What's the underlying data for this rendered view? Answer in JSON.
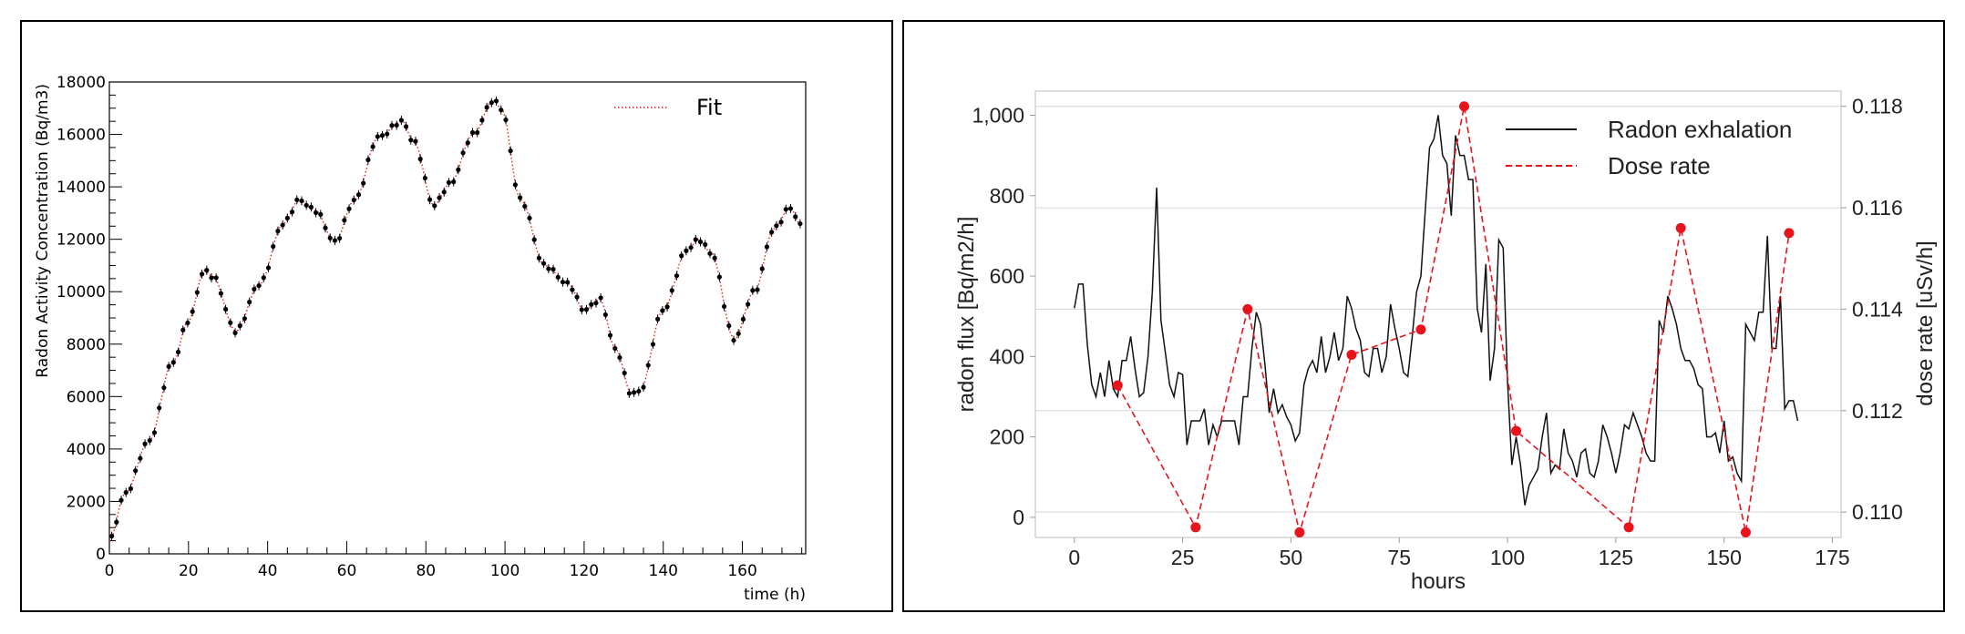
{
  "chart_data": [
    {
      "type": "scatter",
      "title": "",
      "xlabel": "time (h)",
      "ylabel": "Radon Activity Concentration (Bq/m3)",
      "xlim": [
        0,
        176
      ],
      "ylim": [
        0,
        18000
      ],
      "x_ticks": [
        "0",
        "20",
        "40",
        "60",
        "80",
        "100",
        "120",
        "140",
        "160"
      ],
      "x_tick_values": [
        0,
        20,
        40,
        60,
        80,
        100,
        120,
        140,
        160
      ],
      "y_ticks": [
        "0",
        "2000",
        "4000",
        "6000",
        "8000",
        "10000",
        "12000",
        "14000",
        "16000",
        "18000"
      ],
      "y_tick_values": [
        0,
        2000,
        4000,
        6000,
        8000,
        10000,
        12000,
        14000,
        16000,
        18000
      ],
      "legend": [
        {
          "name": "Fit",
          "style": "red dotted line"
        }
      ],
      "legend_position": "top-right",
      "colors": {
        "data": "#000000",
        "fit": "#e0201b"
      },
      "keypoints": [
        [
          0,
          500
        ],
        [
          4,
          2300
        ],
        [
          10,
          4300
        ],
        [
          16,
          7300
        ],
        [
          20,
          8900
        ],
        [
          24,
          10800
        ],
        [
          26,
          10600
        ],
        [
          32,
          8500
        ],
        [
          38,
          10300
        ],
        [
          44,
          12600
        ],
        [
          48,
          13500
        ],
        [
          52,
          13100
        ],
        [
          57,
          11900
        ],
        [
          62,
          13500
        ],
        [
          68,
          15900
        ],
        [
          74,
          16500
        ],
        [
          77,
          15700
        ],
        [
          82,
          13300
        ],
        [
          86,
          14100
        ],
        [
          92,
          16000
        ],
        [
          97,
          17300
        ],
        [
          99,
          17000
        ],
        [
          104,
          13500
        ],
        [
          110,
          11000
        ],
        [
          116,
          10300
        ],
        [
          120,
          9300
        ],
        [
          124,
          9700
        ],
        [
          128,
          7800
        ],
        [
          132,
          6100
        ],
        [
          134,
          6200
        ],
        [
          140,
          9300
        ],
        [
          146,
          11600
        ],
        [
          149,
          12000
        ],
        [
          152,
          11500
        ],
        [
          158,
          8200
        ],
        [
          163,
          10000
        ],
        [
          168,
          12400
        ],
        [
          172,
          13200
        ],
        [
          175,
          12500
        ]
      ],
      "sample_step": 1.2
    },
    {
      "type": "line",
      "title": "",
      "xlabel": "hours",
      "ylabel": "radon flux [Bq/m2/h]",
      "y2label": "dose rate [uSv/h]",
      "xlim": [
        -9,
        177
      ],
      "ylim": [
        -50,
        1060
      ],
      "y2lim": [
        0.1095,
        0.1183
      ],
      "x_ticks": [
        "0",
        "25",
        "50",
        "75",
        "100",
        "125",
        "150",
        "175"
      ],
      "x_tick_values": [
        0,
        25,
        50,
        75,
        100,
        125,
        150,
        175
      ],
      "y_ticks": [
        "0",
        "200",
        "400",
        "600",
        "800",
        "1,000"
      ],
      "y_tick_values": [
        0,
        200,
        400,
        600,
        800,
        1000
      ],
      "y2_ticks": [
        "0.110",
        "0.112",
        "0.114",
        "0.116",
        "0.118"
      ],
      "y2_tick_values": [
        0.11,
        0.112,
        0.114,
        0.116,
        0.118
      ],
      "legend_position": "top-right",
      "colors": {
        "radon": "#111111",
        "dose": "#e8141b"
      },
      "series": [
        {
          "name": "Radon exhalation",
          "axis": "left",
          "style": "solid",
          "x": [
            0,
            1,
            2,
            3,
            4,
            5,
            6,
            7,
            8,
            9,
            10,
            11,
            12,
            13,
            14,
            15,
            16,
            17,
            18,
            19,
            20,
            21,
            22,
            23,
            24,
            25,
            26,
            27,
            28,
            29,
            30,
            31,
            32,
            33,
            34,
            35,
            36,
            37,
            38,
            39,
            40,
            41,
            42,
            43,
            44,
            45,
            46,
            47,
            48,
            49,
            50,
            51,
            52,
            53,
            54,
            55,
            56,
            57,
            58,
            59,
            60,
            61,
            62,
            63,
            64,
            65,
            66,
            67,
            68,
            69,
            70,
            71,
            72,
            73,
            74,
            75,
            76,
            77,
            78,
            79,
            80,
            81,
            82,
            83,
            84,
            85,
            86,
            87,
            88,
            89,
            90,
            91,
            92,
            93,
            94,
            95,
            96,
            97,
            98,
            99,
            100,
            101,
            102,
            103,
            104,
            105,
            106,
            107,
            108,
            109,
            110,
            111,
            112,
            113,
            114,
            115,
            116,
            117,
            118,
            119,
            120,
            121,
            122,
            123,
            124,
            125,
            126,
            127,
            128,
            129,
            130,
            131,
            132,
            133,
            134,
            135,
            136,
            137,
            138,
            139,
            140,
            141,
            142,
            143,
            144,
            145,
            146,
            147,
            148,
            149,
            150,
            151,
            152,
            153,
            154,
            155,
            156,
            157,
            158,
            159,
            160,
            161,
            162,
            163,
            164,
            165,
            166,
            167
          ],
          "values": [
            520,
            580,
            580,
            430,
            330,
            300,
            360,
            300,
            390,
            320,
            300,
            390,
            390,
            450,
            370,
            300,
            310,
            400,
            560,
            820,
            490,
            410,
            330,
            300,
            360,
            355,
            180,
            240,
            240,
            240,
            270,
            180,
            230,
            200,
            240,
            240,
            240,
            240,
            180,
            300,
            300,
            420,
            510,
            480,
            380,
            260,
            320,
            260,
            280,
            250,
            230,
            190,
            210,
            330,
            370,
            390,
            360,
            450,
            360,
            400,
            460,
            390,
            420,
            550,
            520,
            470,
            440,
            360,
            350,
            420,
            420,
            360,
            400,
            530,
            470,
            420,
            360,
            350,
            450,
            560,
            600,
            760,
            920,
            940,
            1000,
            900,
            880,
            750,
            950,
            900,
            900,
            840,
            840,
            520,
            460,
            630,
            340,
            420,
            690,
            670,
            340,
            130,
            200,
            130,
            30,
            80,
            100,
            120,
            200,
            260,
            110,
            130,
            120,
            220,
            160,
            140,
            100,
            160,
            170,
            110,
            100,
            140,
            230,
            200,
            160,
            110,
            160,
            230,
            220,
            260,
            230,
            200,
            160,
            140,
            140,
            490,
            460,
            550,
            520,
            480,
            420,
            390,
            390,
            370,
            330,
            320,
            200,
            200,
            210,
            160,
            240,
            140,
            150,
            110,
            90,
            480,
            460,
            440,
            510,
            510,
            700,
            420,
            420,
            550,
            270,
            290,
            290,
            240
          ]
        },
        {
          "name": "Dose rate",
          "axis": "right",
          "style": "dashed",
          "x": [
            10,
            28,
            40,
            52,
            64,
            80,
            90,
            102,
            128,
            140,
            155,
            165
          ],
          "values": [
            0.1125,
            0.1097,
            0.114,
            0.1096,
            0.1131,
            0.1136,
            0.118,
            0.1116,
            0.1097,
            0.1156,
            0.1096,
            0.1155
          ]
        }
      ]
    }
  ]
}
